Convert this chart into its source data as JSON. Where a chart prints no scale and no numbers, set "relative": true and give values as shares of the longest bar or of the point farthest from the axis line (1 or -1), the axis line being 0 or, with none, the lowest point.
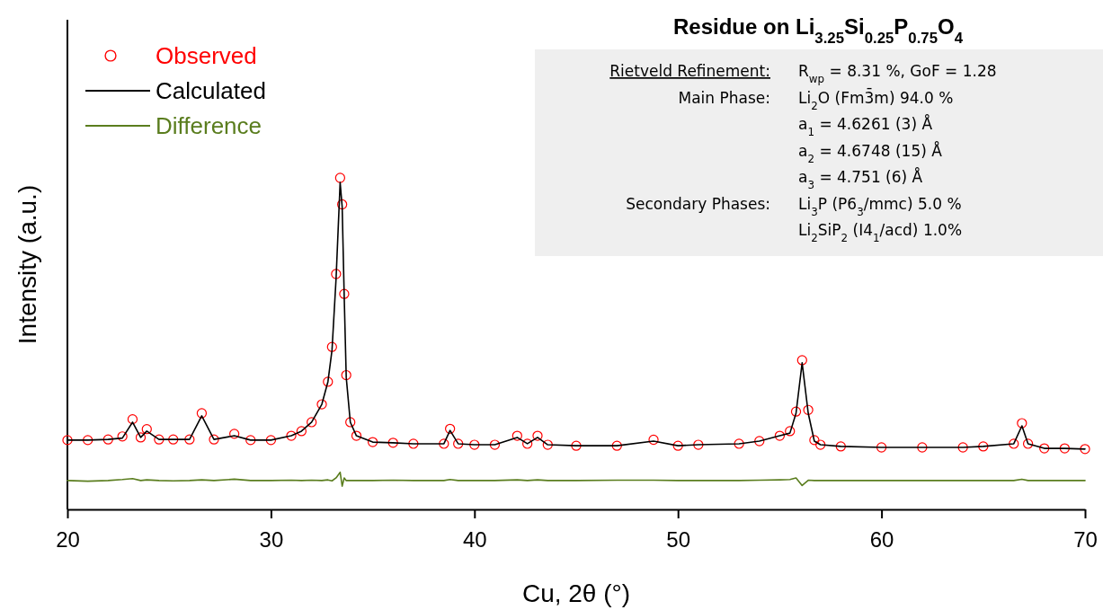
{
  "chart_data": {
    "type": "line",
    "title": "Residue on Li$_{3.25}$Si$_{0.25}$P$_{0.75}$O$_{4}$",
    "xlabel": "Cu, 2θ (°)",
    "ylabel": "Intensity (a.u.)",
    "relative": true,
    "xlim": [
      20,
      70
    ],
    "xticks": [
      20,
      30,
      40,
      50,
      60,
      70
    ],
    "legend": "top left",
    "grid": false,
    "annotations": [
      "Rietveld Refinement:",
      "R$_{wp}$ = 8.31 %, GoF = 1.28",
      "Main Phase:",
      "Li$_{2}$O (Fm3̄m) 94.0 %",
      "a$_{1}$ = 4.6261 (3) Å",
      "a$_{2}$ = 4.6748 (15) Å",
      "a$_{3}$ = 4.751 (6) Å",
      "Secondary Phases:",
      "Li$_{3}$P (P6$_{3}$/mmc) 5.0 %",
      "Li$_{2}$SiP$_{2}$ (I4$_{1}$/acd) 1.0%"
    ],
    "x": [
      20,
      21,
      22,
      22.7,
      23.2,
      23.6,
      23.9,
      24.5,
      25.2,
      26,
      26.6,
      27.2,
      28.2,
      29,
      30,
      31,
      31.5,
      32,
      32.5,
      32.8,
      33,
      33.2,
      33.4,
      33.5,
      33.6,
      33.7,
      33.9,
      34.2,
      35,
      36,
      37,
      38.5,
      38.8,
      39.2,
      40,
      41,
      42.1,
      42.6,
      43.1,
      43.6,
      45,
      47,
      48.8,
      50,
      51,
      53,
      54,
      55,
      55.5,
      55.8,
      56.1,
      56.4,
      56.7,
      57,
      58,
      60,
      62,
      64,
      65,
      66.5,
      66.9,
      67.2,
      68,
      69,
      70
    ],
    "series": [
      {
        "name": "Observed",
        "type": "scatter",
        "marker": "circle",
        "color": "#ff0000",
        "values": [
          0.209,
          0.209,
          0.211,
          0.22,
          0.272,
          0.217,
          0.242,
          0.211,
          0.211,
          0.211,
          0.29,
          0.211,
          0.228,
          0.209,
          0.209,
          0.222,
          0.236,
          0.263,
          0.317,
          0.385,
          0.49,
          0.71,
          1.0,
          0.92,
          0.65,
          0.405,
          0.263,
          0.222,
          0.203,
          0.201,
          0.198,
          0.198,
          0.243,
          0.198,
          0.195,
          0.195,
          0.222,
          0.198,
          0.222,
          0.195,
          0.192,
          0.192,
          0.21,
          0.192,
          0.195,
          0.198,
          0.206,
          0.222,
          0.236,
          0.295,
          0.45,
          0.3,
          0.209,
          0.195,
          0.19,
          0.187,
          0.187,
          0.187,
          0.19,
          0.198,
          0.26,
          0.198,
          0.184,
          0.184,
          0.182
        ]
      },
      {
        "name": "Calculated",
        "color": "#000000",
        "values": [
          0.209,
          0.209,
          0.211,
          0.215,
          0.263,
          0.217,
          0.236,
          0.211,
          0.211,
          0.211,
          0.282,
          0.211,
          0.222,
          0.209,
          0.209,
          0.222,
          0.236,
          0.263,
          0.317,
          0.385,
          0.48,
          0.696,
          0.986,
          0.913,
          0.642,
          0.398,
          0.263,
          0.222,
          0.203,
          0.201,
          0.198,
          0.198,
          0.238,
          0.198,
          0.195,
          0.195,
          0.217,
          0.198,
          0.217,
          0.195,
          0.192,
          0.192,
          0.206,
          0.192,
          0.195,
          0.198,
          0.206,
          0.222,
          0.23,
          0.29,
          0.442,
          0.29,
          0.206,
          0.195,
          0.19,
          0.187,
          0.187,
          0.187,
          0.19,
          0.198,
          0.252,
          0.198,
          0.184,
          0.184,
          0.182
        ]
      },
      {
        "name": "Difference",
        "color": "#5a7d1e",
        "values": [
          0.087,
          0.085,
          0.087,
          0.09,
          0.093,
          0.087,
          0.089,
          0.087,
          0.086,
          0.087,
          0.089,
          0.087,
          0.091,
          0.087,
          0.087,
          0.088,
          0.087,
          0.088,
          0.087,
          0.089,
          0.086,
          0.095,
          0.112,
          0.07,
          0.095,
          0.087,
          0.087,
          0.087,
          0.087,
          0.088,
          0.087,
          0.087,
          0.09,
          0.087,
          0.087,
          0.087,
          0.089,
          0.087,
          0.089,
          0.087,
          0.087,
          0.088,
          0.088,
          0.087,
          0.087,
          0.087,
          0.088,
          0.089,
          0.09,
          0.095,
          0.072,
          0.088,
          0.087,
          0.087,
          0.087,
          0.087,
          0.087,
          0.087,
          0.087,
          0.087,
          0.091,
          0.087,
          0.087,
          0.087,
          0.087
        ]
      }
    ]
  }
}
